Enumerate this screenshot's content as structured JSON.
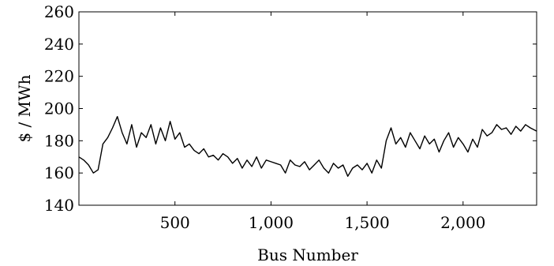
{
  "chart_data": {
    "type": "line",
    "title": "",
    "xlabel": "Bus Number",
    "ylabel": "$ / MWh",
    "xlim": [
      0,
      2383
    ],
    "ylim": [
      140,
      260
    ],
    "xticks": [
      500,
      1000,
      1500,
      2000
    ],
    "xtick_labels": [
      "500",
      "1,000",
      "1,500",
      "2,000"
    ],
    "yticks": [
      140,
      160,
      180,
      200,
      220,
      240,
      260
    ],
    "ytick_labels": [
      "140",
      "160",
      "180",
      "200",
      "220",
      "240",
      "260"
    ],
    "grid": false,
    "legend": "none",
    "line_color": "#000000",
    "series": [
      {
        "x": [
          0,
          25,
          50,
          75,
          100,
          125,
          150,
          175,
          200,
          225,
          250,
          275,
          300,
          325,
          350,
          375,
          400,
          425,
          450,
          475,
          500,
          525,
          550,
          575,
          600,
          625,
          650,
          675,
          700,
          725,
          750,
          775,
          800,
          825,
          850,
          875,
          900,
          925,
          950,
          975,
          1000,
          1025,
          1050,
          1075,
          1100,
          1125,
          1150,
          1175,
          1200,
          1225,
          1250,
          1275,
          1300,
          1325,
          1350,
          1375,
          1400,
          1425,
          1450,
          1475,
          1500,
          1525,
          1550,
          1575,
          1600,
          1625,
          1650,
          1675,
          1700,
          1725,
          1750,
          1775,
          1800,
          1825,
          1850,
          1875,
          1900,
          1925,
          1950,
          1975,
          2000,
          2025,
          2050,
          2075,
          2100,
          2125,
          2150,
          2175,
          2200,
          2225,
          2250,
          2275,
          2300,
          2325,
          2350,
          2383
        ],
        "values": [
          170,
          168,
          165,
          160,
          162,
          178,
          182,
          188,
          195,
          185,
          178,
          190,
          176,
          185,
          182,
          190,
          178,
          188,
          180,
          192,
          181,
          185,
          176,
          178,
          174,
          172,
          175,
          170,
          171,
          168,
          172,
          170,
          166,
          169,
          163,
          168,
          164,
          170,
          163,
          168,
          167,
          166,
          165,
          160,
          168,
          165,
          164,
          167,
          162,
          165,
          168,
          163,
          160,
          166,
          163,
          165,
          158,
          163,
          165,
          162,
          166,
          160,
          168,
          163,
          180,
          188,
          178,
          182,
          176,
          185,
          180,
          175,
          183,
          178,
          181,
          173,
          180,
          185,
          176,
          182,
          178,
          173,
          181,
          176,
          187,
          183,
          185,
          190,
          187,
          188,
          184,
          189,
          186,
          190,
          188,
          186
        ]
      }
    ]
  }
}
